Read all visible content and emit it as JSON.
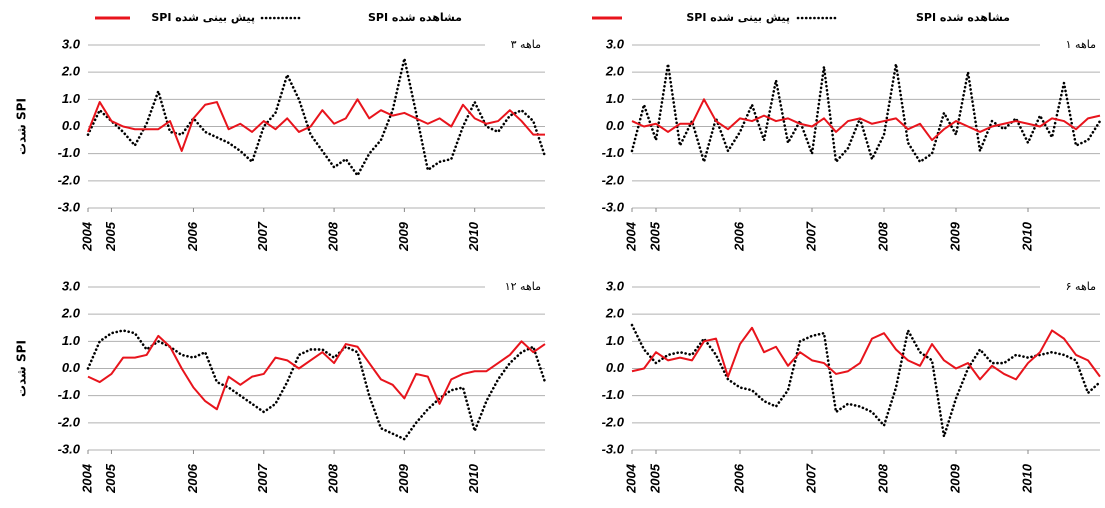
{
  "chart_data": [
    {
      "type": "line",
      "title": "۳ ماهه",
      "ylabel": "شدت SPI",
      "grid": true,
      "x": [
        0,
        2,
        4,
        6,
        8,
        10,
        12,
        14,
        16,
        18,
        20,
        22,
        24,
        26,
        28,
        30,
        32,
        34,
        36,
        38,
        40,
        42,
        44,
        46,
        48,
        50,
        52,
        54,
        56,
        58,
        60,
        62,
        64,
        66,
        68,
        70,
        72,
        74,
        76,
        78
      ],
      "xlim": [
        0,
        78
      ],
      "xticks": [
        {
          "value": 0,
          "label": "2004"
        },
        {
          "value": 4,
          "label": "2005"
        },
        {
          "value": 18,
          "label": "2006"
        },
        {
          "value": 30,
          "label": "2007"
        },
        {
          "value": 42,
          "label": "2008"
        },
        {
          "value": 54,
          "label": "2009"
        },
        {
          "value": 66,
          "label": "2010"
        }
      ],
      "ylim": [
        -3,
        3
      ],
      "yticks": [
        {
          "value": -3,
          "label": "-3.0"
        },
        {
          "value": -2,
          "label": "-2.0"
        },
        {
          "value": -1,
          "label": "-1.0"
        },
        {
          "value": 0,
          "label": "0.0"
        },
        {
          "value": 1,
          "label": "1.0"
        },
        {
          "value": 2,
          "label": "2.0"
        },
        {
          "value": 3,
          "label": "3.0"
        }
      ],
      "series": [
        {
          "name": "SPI مشاهده شده",
          "color": "#000000",
          "style": "dotted",
          "values": [
            -0.3,
            0.6,
            0.2,
            -0.2,
            -0.7,
            0.1,
            1.3,
            -0.2,
            -0.3,
            0.3,
            -0.2,
            -0.4,
            -0.6,
            -0.9,
            -1.3,
            0.0,
            0.5,
            1.9,
            1.0,
            -0.3,
            -0.9,
            -1.5,
            -1.2,
            -1.8,
            -1.0,
            -0.5,
            0.6,
            2.5,
            0.5,
            -1.6,
            -1.3,
            -1.2,
            0.0,
            0.9,
            0.0,
            -0.2,
            0.4,
            0.6,
            0.2,
            -1.1
          ]
        },
        {
          "name": "SPI پیش بینی شده",
          "color": "#e8141c",
          "style": "solid",
          "values": [
            -0.2,
            0.9,
            0.2,
            0.0,
            -0.1,
            -0.1,
            -0.1,
            0.2,
            -0.9,
            0.3,
            0.8,
            0.9,
            -0.1,
            0.1,
            -0.2,
            0.2,
            -0.1,
            0.3,
            -0.2,
            0.0,
            0.6,
            0.1,
            0.3,
            1.0,
            0.3,
            0.6,
            0.4,
            0.5,
            0.3,
            0.1,
            0.3,
            0.0,
            0.8,
            0.3,
            0.1,
            0.2,
            0.6,
            0.2,
            -0.3,
            -0.3
          ]
        }
      ]
    },
    {
      "type": "line",
      "title": "۱ ماهه",
      "grid": true,
      "x": [
        0,
        2,
        4,
        6,
        8,
        10,
        12,
        14,
        16,
        18,
        20,
        22,
        24,
        26,
        28,
        30,
        32,
        34,
        36,
        38,
        40,
        42,
        44,
        46,
        48,
        50,
        52,
        54,
        56,
        58,
        60,
        62,
        64,
        66,
        68,
        70,
        72,
        74,
        76,
        78
      ],
      "xlim": [
        0,
        78
      ],
      "xticks": [
        {
          "value": 0,
          "label": "2004"
        },
        {
          "value": 4,
          "label": "2005"
        },
        {
          "value": 18,
          "label": "2006"
        },
        {
          "value": 30,
          "label": "2007"
        },
        {
          "value": 42,
          "label": "2008"
        },
        {
          "value": 54,
          "label": "2009"
        },
        {
          "value": 66,
          "label": "2010"
        }
      ],
      "ylim": [
        -3,
        3
      ],
      "yticks": [
        {
          "value": -3,
          "label": "-3.0"
        },
        {
          "value": -2,
          "label": "-2.0"
        },
        {
          "value": -1,
          "label": "-1.0"
        },
        {
          "value": 0,
          "label": "0.0"
        },
        {
          "value": 1,
          "label": "1.0"
        },
        {
          "value": 2,
          "label": "2.0"
        },
        {
          "value": 3,
          "label": "3.0"
        }
      ],
      "series": [
        {
          "name": "SPI مشاهده شده",
          "color": "#000000",
          "style": "dotted",
          "values": [
            -0.9,
            0.8,
            -0.5,
            2.3,
            -0.7,
            0.2,
            -1.3,
            0.3,
            -0.9,
            -0.2,
            0.8,
            -0.5,
            1.7,
            -0.6,
            0.2,
            -1.0,
            2.2,
            -1.3,
            -0.8,
            0.3,
            -1.2,
            -0.3,
            2.3,
            -0.6,
            -1.3,
            -1.0,
            0.5,
            -0.3,
            2.0,
            -0.9,
            0.2,
            -0.1,
            0.3,
            -0.6,
            0.4,
            -0.4,
            1.6,
            -0.7,
            -0.5,
            0.2
          ]
        },
        {
          "name": "SPI پیش بینی شده",
          "color": "#e8141c",
          "style": "solid",
          "values": [
            0.2,
            0.0,
            0.1,
            -0.2,
            0.1,
            0.1,
            1.0,
            0.2,
            -0.1,
            0.3,
            0.2,
            0.4,
            0.2,
            0.3,
            0.1,
            0.0,
            0.3,
            -0.2,
            0.2,
            0.3,
            0.1,
            0.2,
            0.3,
            -0.1,
            0.1,
            -0.5,
            -0.1,
            0.2,
            0.0,
            -0.2,
            0.0,
            0.1,
            0.2,
            0.1,
            0.0,
            0.3,
            0.2,
            -0.1,
            0.3,
            0.4
          ]
        }
      ]
    },
    {
      "type": "line",
      "title": "۱۲ ماهه",
      "ylabel": "شدت SPI",
      "grid": true,
      "x": [
        0,
        2,
        4,
        6,
        8,
        10,
        12,
        14,
        16,
        18,
        20,
        22,
        24,
        26,
        28,
        30,
        32,
        34,
        36,
        38,
        40,
        42,
        44,
        46,
        48,
        50,
        52,
        54,
        56,
        58,
        60,
        62,
        64,
        66,
        68,
        70,
        72,
        74,
        76,
        78
      ],
      "xlim": [
        0,
        78
      ],
      "xticks": [
        {
          "value": 0,
          "label": "2004"
        },
        {
          "value": 4,
          "label": "2005"
        },
        {
          "value": 18,
          "label": "2006"
        },
        {
          "value": 30,
          "label": "2007"
        },
        {
          "value": 42,
          "label": "2008"
        },
        {
          "value": 54,
          "label": "2009"
        },
        {
          "value": 66,
          "label": "2010"
        }
      ],
      "ylim": [
        -3,
        3
      ],
      "yticks": [
        {
          "value": -3,
          "label": "-3.0"
        },
        {
          "value": -2,
          "label": "-2.0"
        },
        {
          "value": -1,
          "label": "-1.0"
        },
        {
          "value": 0,
          "label": "0.0"
        },
        {
          "value": 1,
          "label": "1.0"
        },
        {
          "value": 2,
          "label": "2.0"
        },
        {
          "value": 3,
          "label": "3.0"
        }
      ],
      "series": [
        {
          "color": "#000000",
          "style": "dotted",
          "values": [
            0.0,
            1.0,
            1.3,
            1.4,
            1.3,
            0.7,
            1.0,
            0.8,
            0.5,
            0.4,
            0.6,
            -0.5,
            -0.7,
            -1.0,
            -1.3,
            -1.6,
            -1.3,
            -0.5,
            0.5,
            0.7,
            0.7,
            0.4,
            0.8,
            0.6,
            -1.0,
            -2.2,
            -2.4,
            -2.6,
            -2.0,
            -1.5,
            -1.1,
            -0.8,
            -0.7,
            -2.3,
            -1.2,
            -0.4,
            0.2,
            0.6,
            0.8,
            -0.5
          ]
        },
        {
          "color": "#e8141c",
          "style": "solid",
          "values": [
            -0.3,
            -0.5,
            -0.2,
            0.4,
            0.4,
            0.5,
            1.2,
            0.8,
            0.0,
            -0.7,
            -1.2,
            -1.5,
            -0.3,
            -0.6,
            -0.3,
            -0.2,
            0.4,
            0.3,
            0.0,
            0.3,
            0.6,
            0.2,
            0.9,
            0.8,
            0.2,
            -0.4,
            -0.6,
            -1.1,
            -0.2,
            -0.3,
            -1.3,
            -0.4,
            -0.2,
            -0.1,
            -0.1,
            0.2,
            0.5,
            1.0,
            0.6,
            0.9
          ]
        }
      ]
    },
    {
      "type": "line",
      "title": "۶ ماهه",
      "grid": true,
      "x": [
        0,
        2,
        4,
        6,
        8,
        10,
        12,
        14,
        16,
        18,
        20,
        22,
        24,
        26,
        28,
        30,
        32,
        34,
        36,
        38,
        40,
        42,
        44,
        46,
        48,
        50,
        52,
        54,
        56,
        58,
        60,
        62,
        64,
        66,
        68,
        70,
        72,
        74,
        76,
        78
      ],
      "xlim": [
        0,
        78
      ],
      "xticks": [
        {
          "value": 0,
          "label": "2004"
        },
        {
          "value": 4,
          "label": "2005"
        },
        {
          "value": 18,
          "label": "2006"
        },
        {
          "value": 30,
          "label": "2007"
        },
        {
          "value": 42,
          "label": "2008"
        },
        {
          "value": 54,
          "label": "2009"
        },
        {
          "value": 66,
          "label": "2010"
        }
      ],
      "ylim": [
        -3,
        3
      ],
      "yticks": [
        {
          "value": -3,
          "label": "-3.0"
        },
        {
          "value": -2,
          "label": "-2.0"
        },
        {
          "value": -1,
          "label": "-1.0"
        },
        {
          "value": 0,
          "label": "0.0"
        },
        {
          "value": 1,
          "label": "1.0"
        },
        {
          "value": 2,
          "label": "2.0"
        },
        {
          "value": 3,
          "label": "3.0"
        }
      ],
      "series": [
        {
          "color": "#000000",
          "style": "dotted",
          "values": [
            1.6,
            0.7,
            0.2,
            0.5,
            0.6,
            0.5,
            1.1,
            0.5,
            -0.4,
            -0.7,
            -0.8,
            -1.2,
            -1.4,
            -0.8,
            1.0,
            1.2,
            1.3,
            -1.6,
            -1.3,
            -1.4,
            -1.6,
            -2.1,
            -0.7,
            1.4,
            0.6,
            0.3,
            -2.5,
            -1.1,
            0.0,
            0.7,
            0.2,
            0.2,
            0.5,
            0.4,
            0.5,
            0.6,
            0.5,
            0.3,
            -0.9,
            -0.5
          ]
        },
        {
          "color": "#e8141c",
          "style": "solid",
          "values": [
            -0.1,
            0.0,
            0.6,
            0.3,
            0.4,
            0.3,
            1.0,
            1.1,
            -0.3,
            0.9,
            1.5,
            0.6,
            0.8,
            0.1,
            0.6,
            0.3,
            0.2,
            -0.2,
            -0.1,
            0.2,
            1.1,
            1.3,
            0.7,
            0.3,
            0.1,
            0.9,
            0.3,
            0.0,
            0.2,
            -0.4,
            0.1,
            -0.2,
            -0.4,
            0.2,
            0.6,
            1.4,
            1.1,
            0.5,
            0.3,
            -0.3
          ]
        }
      ]
    }
  ]
}
